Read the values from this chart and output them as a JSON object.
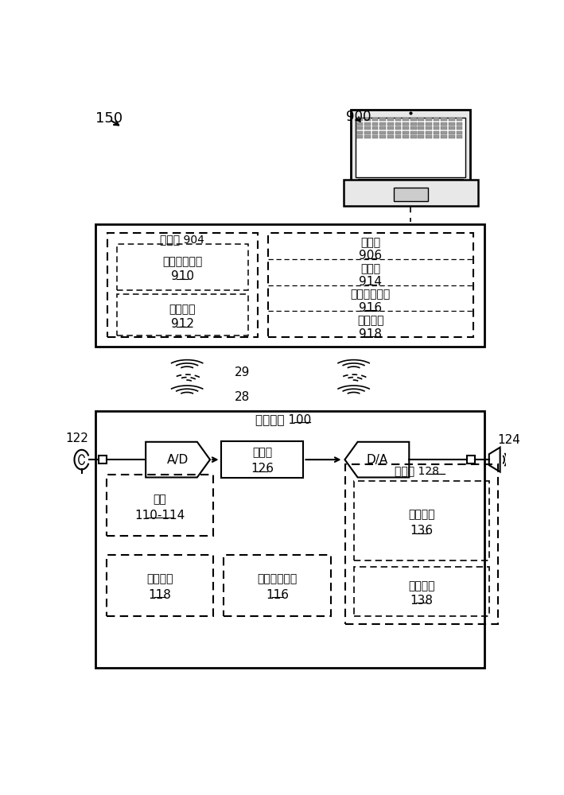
{
  "bg_color": "#ffffff",
  "title_150": "150",
  "title_900": "900",
  "label_29": "29",
  "label_28": "28",
  "label_122": "122",
  "label_124": "124",
  "device_title": "听力装置 100",
  "storage_904_label": "存储器 904",
  "sw_app_label": "软件应用程序",
  "sw_app_num": "910",
  "audio_seg_label": "声音片段",
  "audio_seg_num": "912",
  "processor_906_label": "处理器",
  "processor_906_num": "906",
  "display_label": "显示器",
  "display_num": "914",
  "wireless_label": "无线电子器件",
  "wireless_num": "916",
  "input_label": "输入接口",
  "input_num": "918",
  "ad_label": "A/D",
  "processor_126_label": "处理器",
  "processor_126_num": "126",
  "da_label": "D/A",
  "switch_label": "开关",
  "switch_num": "110-114",
  "wireless_ant_label": "无线天线",
  "wireless_ant_num": "118",
  "wireless_elec_label": "无线电子器件",
  "wireless_elec_num": "116",
  "storage_128_label": "存储器 128",
  "fitting_param_label": "配装参数",
  "fitting_param_num": "136",
  "audio_seg2_label": "声音片段",
  "audio_seg2_num": "138"
}
